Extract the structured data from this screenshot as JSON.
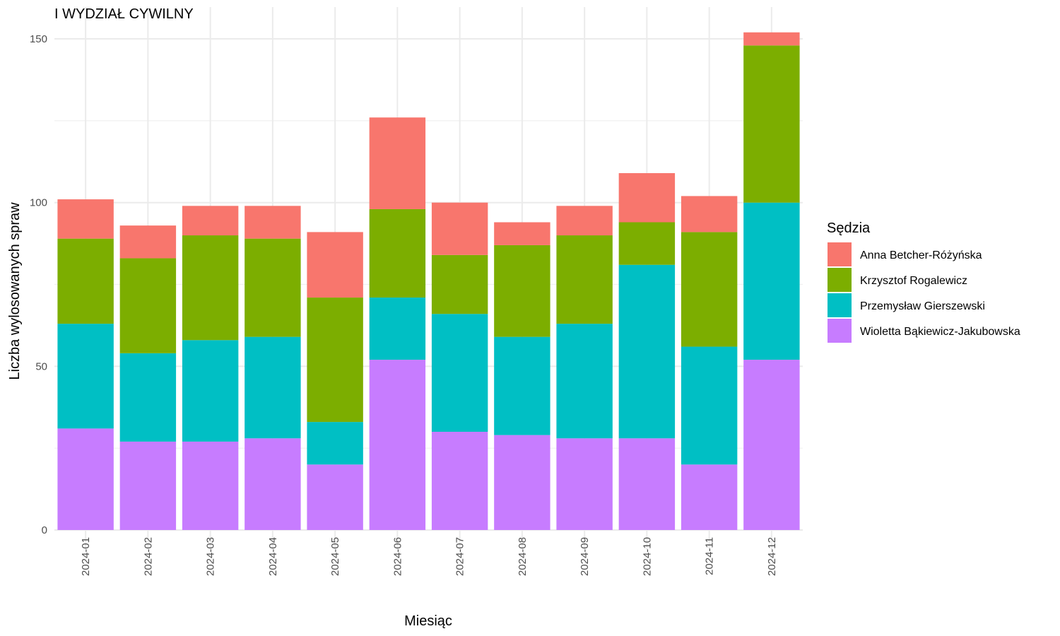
{
  "chart_data": {
    "type": "bar",
    "stacked": true,
    "title": "I WYDZIAŁ CYWILNY",
    "xlabel": "Miesiąc",
    "ylabel": "Liczba wylosowanych spraw",
    "ylim": [
      0,
      155
    ],
    "yticks": [
      0,
      50,
      100,
      150
    ],
    "grid": true,
    "legend_title": "Sędzia",
    "legend_position": "right",
    "categories": [
      "2024-01",
      "2024-02",
      "2024-03",
      "2024-04",
      "2024-05",
      "2024-06",
      "2024-07",
      "2024-08",
      "2024-09",
      "2024-10",
      "2024-11",
      "2024-12"
    ],
    "series": [
      {
        "name": "Wioletta Bąkiewicz-Jakubowska",
        "color": "#C77CFF",
        "values": [
          31,
          27,
          27,
          28,
          20,
          52,
          30,
          29,
          28,
          28,
          20,
          52
        ]
      },
      {
        "name": "Przemysław Gierszewski",
        "color": "#00BFC4",
        "values": [
          32,
          27,
          31,
          31,
          13,
          19,
          36,
          30,
          35,
          53,
          36,
          48
        ]
      },
      {
        "name": "Krzysztof Rogalewicz",
        "color": "#7CAE00",
        "values": [
          26,
          29,
          32,
          30,
          38,
          27,
          18,
          28,
          27,
          13,
          35,
          48
        ]
      },
      {
        "name": "Anna Betcher-Różyńska",
        "color": "#F8766D",
        "values": [
          12,
          10,
          9,
          10,
          20,
          28,
          16,
          7,
          9,
          15,
          11,
          4
        ]
      }
    ],
    "legend_order": [
      "Anna Betcher-Różyńska",
      "Krzysztof Rogalewicz",
      "Przemysław Gierszewski",
      "Wioletta Bąkiewicz-Jakubowska"
    ]
  }
}
